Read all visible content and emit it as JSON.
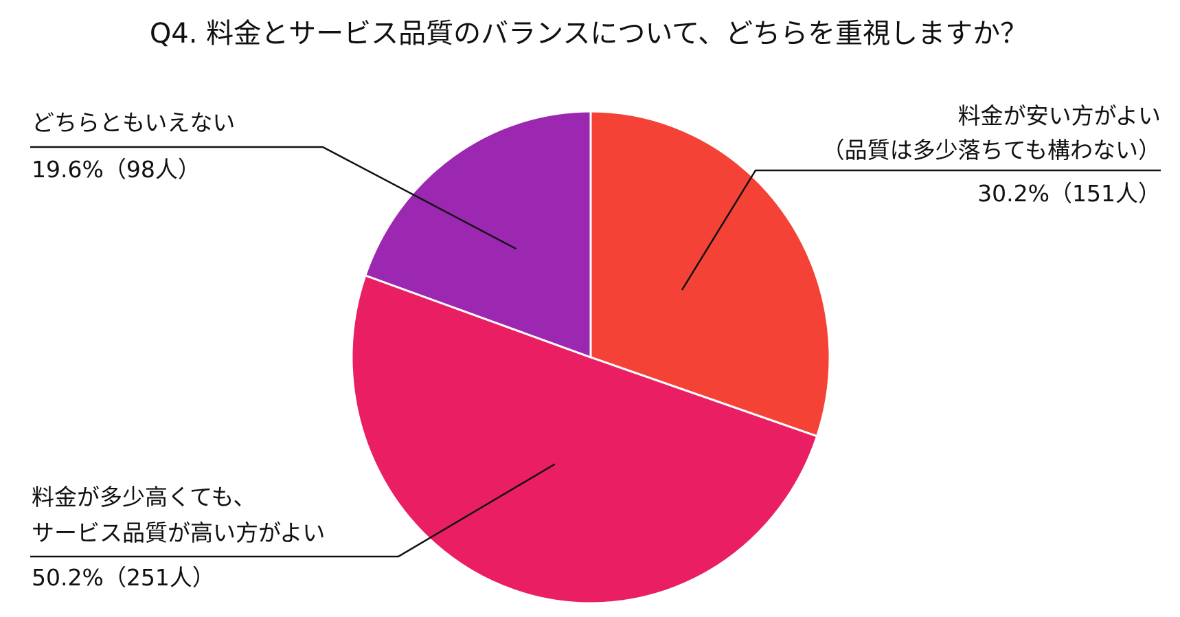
{
  "chart_data": {
    "type": "pie",
    "title": "Q4. 料金とサービス品質のバランスについて、どちらを重視しますか？",
    "slices": [
      {
        "label_lines": [
          "料金が安い方がよい",
          "（品質は多少落ちても構わない）"
        ],
        "percent": 30.2,
        "count": 151,
        "value_text": "30.2%（151人）",
        "color": "#f44336"
      },
      {
        "label_lines": [
          "料金が多少高くても、",
          "サービス品質が高い方がよい"
        ],
        "percent": 50.2,
        "count": 251,
        "value_text": "50.2%（251人）",
        "color": "#e91e63"
      },
      {
        "label_lines": [
          "どちらともいえない"
        ],
        "percent": 19.6,
        "count": 98,
        "value_text": "19.6%（98人）",
        "color": "#9c27b0"
      }
    ]
  }
}
